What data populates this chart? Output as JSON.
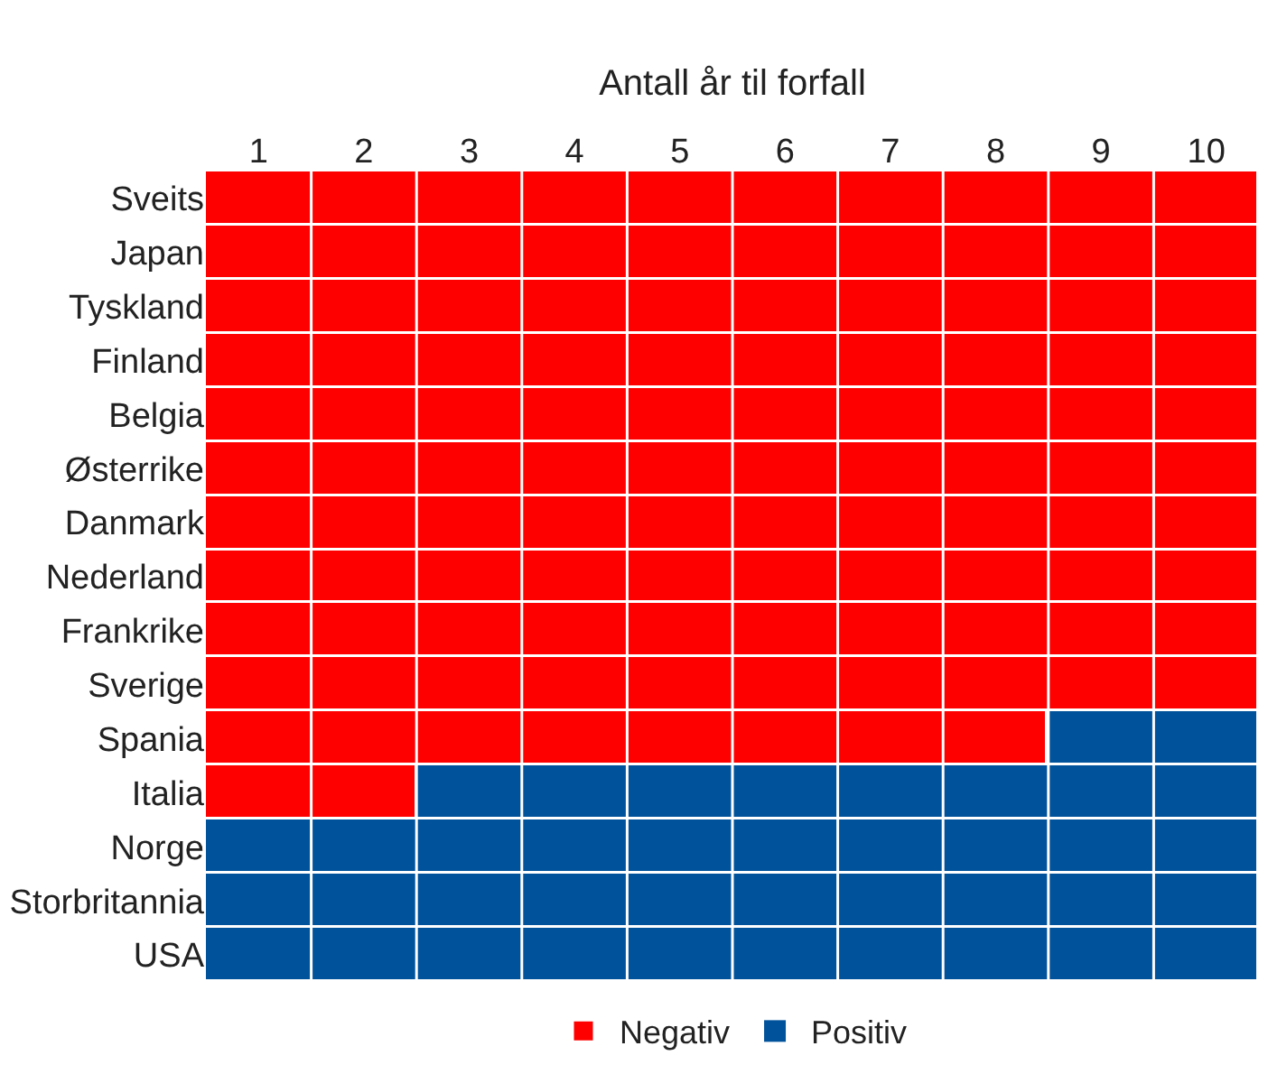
{
  "chart_data": {
    "type": "bar",
    "orientation": "horizontal",
    "stacked": true,
    "xlabel": "Antall år til forfall",
    "categories": [
      "Sveits",
      "Japan",
      "Tyskland",
      "Finland",
      "Belgia",
      "Østerrike",
      "Danmark",
      "Nederland",
      "Frankrike",
      "Sverige",
      "Spania",
      "Italia",
      "Norge",
      "Storbritannia",
      "USA"
    ],
    "series": [
      {
        "name": "Negativ",
        "color": "#ff0000",
        "values": [
          10,
          10,
          10,
          10,
          10,
          10,
          10,
          10,
          10,
          10,
          8,
          2,
          0,
          0,
          0
        ]
      },
      {
        "name": "Positiv",
        "color": "#00529b",
        "values": [
          0,
          0,
          0,
          0,
          0,
          0,
          0,
          0,
          0,
          0,
          2,
          8,
          10,
          10,
          10
        ]
      }
    ],
    "xlim": [
      0,
      10
    ],
    "xticks": [
      {
        "value": 0.5,
        "label": "1"
      },
      {
        "value": 1.5,
        "label": "2"
      },
      {
        "value": 2.5,
        "label": "3"
      },
      {
        "value": 3.5,
        "label": "4"
      },
      {
        "value": 4.5,
        "label": "5"
      },
      {
        "value": 5.5,
        "label": "6"
      },
      {
        "value": 6.5,
        "label": "7"
      },
      {
        "value": 7.5,
        "label": "8"
      },
      {
        "value": 8.5,
        "label": "9"
      },
      {
        "value": 9.5,
        "label": "10"
      }
    ],
    "legend": "bottom"
  }
}
